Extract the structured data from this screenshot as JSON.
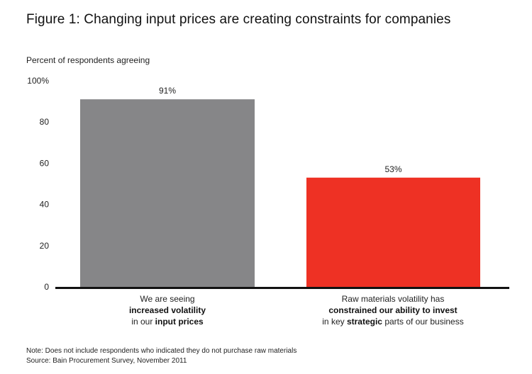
{
  "title": "Figure 1: Changing input prices are creating constraints for companies",
  "chart_data": {
    "type": "bar",
    "ylabel": "Percent of respondents agreeing",
    "ylim": [
      0,
      100
    ],
    "yticks": [
      "0",
      "20",
      "40",
      "60",
      "80",
      "100%"
    ],
    "categories": [
      "We are seeing increased volatility in our input prices",
      "Raw materials volatility has constrained our ability to invest in key strategic parts of our business"
    ],
    "values": [
      91,
      53
    ],
    "value_labels": [
      "91%",
      "53%"
    ],
    "colors": [
      "#868688",
      "#ee3124"
    ],
    "axis_color": "#111111",
    "grid": false
  },
  "category_labels": [
    {
      "line1": "We are seeing",
      "line2_bold": "increased volatility",
      "line3_pre": "in our ",
      "line3_bold": "input prices",
      "line3_post": ""
    },
    {
      "line1": "Raw materials volatility has",
      "line2_bold": "constrained our ability to invest",
      "line3_pre": "in key ",
      "line3_bold": "strategic",
      "line3_post": " parts of our business"
    }
  ],
  "notes": {
    "note": "Note: Does not include respondents who indicated they do not purchase raw materials",
    "source": "Source: Bain Procurement Survey, November 2011"
  }
}
